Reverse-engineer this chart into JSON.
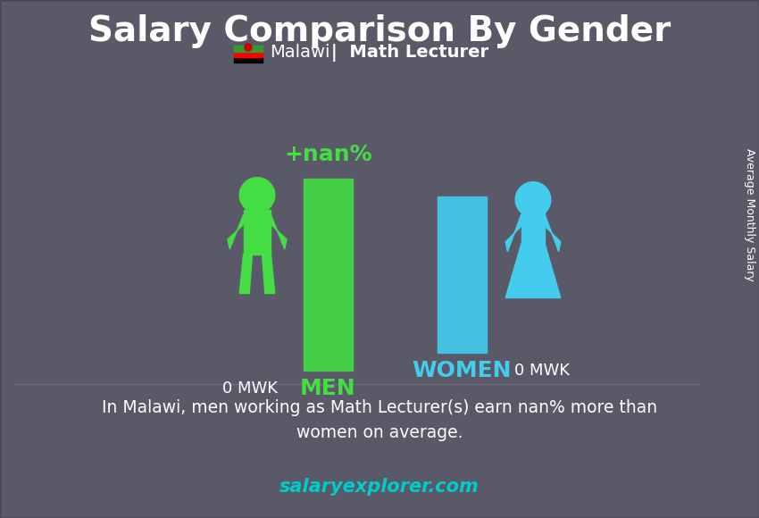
{
  "title": "Salary Comparison By Gender",
  "subtitle_country": "Malawi",
  "subtitle_job": "Math Lecturer",
  "men_value": "0 MWK",
  "women_value": "0 MWK",
  "men_label": "MEN",
  "women_label": "WOMEN",
  "diff_label": "+nan%",
  "bar_men_color": "#44dd44",
  "bar_women_color": "#44ccee",
  "men_icon_color": "#44dd44",
  "women_icon_color": "#44ccee",
  "title_color": "#ffffff",
  "subtitle_color": "#ffffff",
  "men_label_color": "#44dd44",
  "women_label_color": "#44ccee",
  "value_color": "#ffffff",
  "diff_color": "#44dd44",
  "bottom_text_color": "#ffffff",
  "ylabel": "Average Monthly Salary",
  "footer": "salaryexplorer.com",
  "footer_color": "#00cccc",
  "bottom_text": "In Malawi, men working as Math Lecturer(s) earn nan% more than\nwomen on average.",
  "background_color": "#00000000",
  "men_bar_height": 0.75,
  "women_bar_height": 0.55
}
